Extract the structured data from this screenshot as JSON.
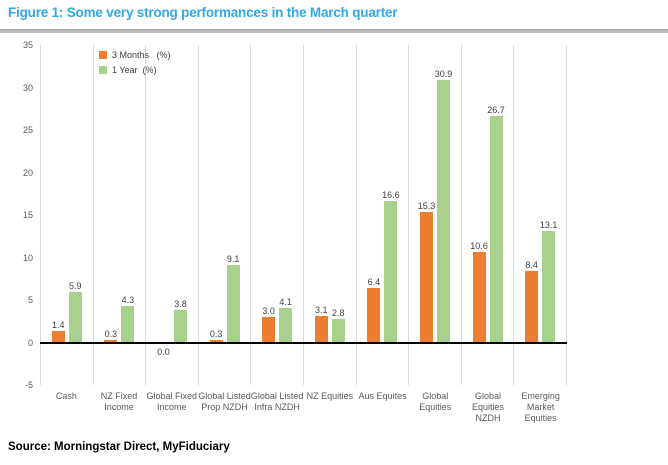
{
  "header": {
    "title": "Figure 1: Some very strong performances in the March quarter",
    "title_color": "#2FA9E6",
    "rule_color": "#BDBDBD"
  },
  "chart_data": {
    "type": "bar",
    "title": "",
    "categories": [
      "Cash",
      "NZ Fixed\nIncome",
      "Global Fixed\nIncome",
      "Global Listed\nProp NZDH",
      "Global Listed\nInfra NZDH",
      "NZ Equities",
      "Aus Equites",
      "Global\nEquities",
      "Global\nEquities\nNZDH",
      "Emerging\nMarket\nEquities"
    ],
    "series": [
      {
        "name": "3 Months   (%)",
        "color": "#ED7D31",
        "values": [
          1.4,
          0.3,
          0.0,
          0.3,
          3.0,
          3.1,
          6.4,
          15.3,
          10.6,
          8.4
        ]
      },
      {
        "name": "1 Year  (%)",
        "color": "#A9D18E",
        "values": [
          5.9,
          4.3,
          3.8,
          9.1,
          4.1,
          2.8,
          16.6,
          30.9,
          26.7,
          13.1
        ]
      }
    ],
    "ylim": [
      -5,
      35
    ],
    "yticks": [
      35,
      30,
      25,
      20,
      15,
      10,
      5,
      0,
      -5
    ],
    "xlabel": "",
    "ylabel": "",
    "grid": "vertical-category-gridlines",
    "gridline_color": "#D9D9D9",
    "zero_axis_color": "#000000",
    "legend_position": "top-left-inside-plot",
    "data_labels": "one-decimal"
  },
  "footer": {
    "source": "Source: Morningstar Direct, MyFiduciary"
  }
}
